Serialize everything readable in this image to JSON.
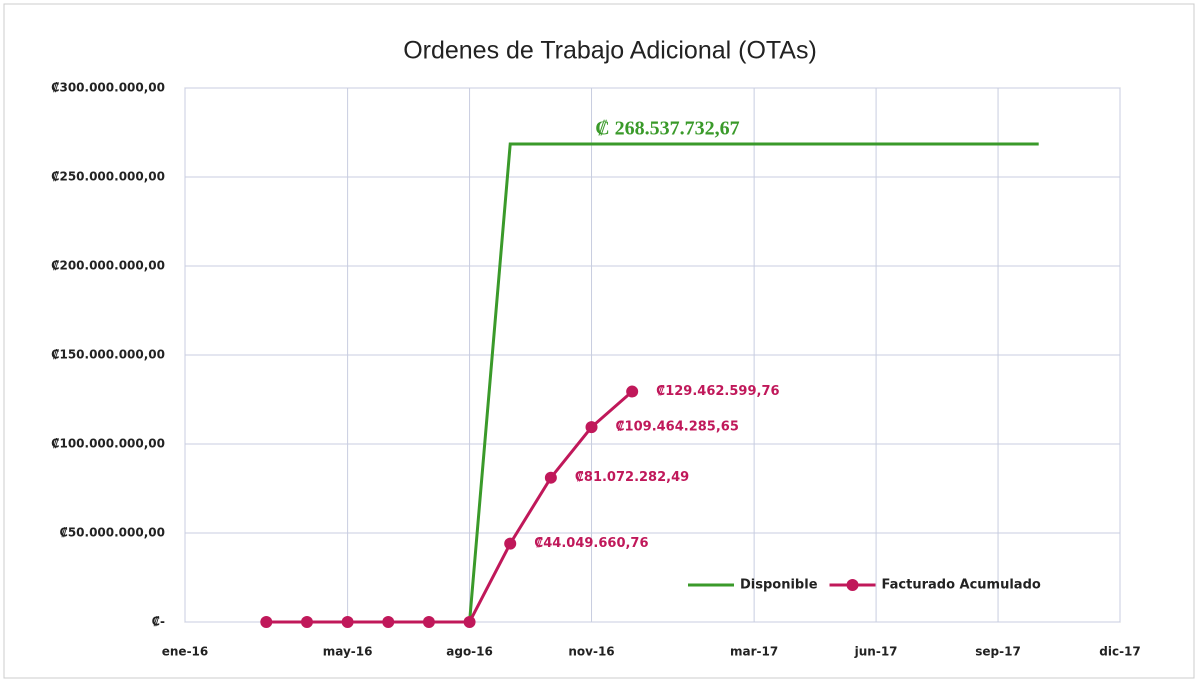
{
  "chart_data": {
    "type": "line",
    "title": "Ordenes de Trabajo Adicional (OTAs)",
    "xlim": [
      "2016-01",
      "2017-12"
    ],
    "xticks": [
      {
        "value": "2016-01",
        "label": "ene-16"
      },
      {
        "value": "2016-05",
        "label": "may-16"
      },
      {
        "value": "2016-08",
        "label": "ago-16"
      },
      {
        "value": "2016-11",
        "label": "nov-16"
      },
      {
        "value": "2017-03",
        "label": "mar-17"
      },
      {
        "value": "2017-06",
        "label": "jun-17"
      },
      {
        "value": "2017-09",
        "label": "sep-17"
      },
      {
        "value": "2017-12",
        "label": "dic-17"
      }
    ],
    "ylim": [
      0,
      300000000
    ],
    "yticks": [
      {
        "value": 0,
        "label": "₡-"
      },
      {
        "value": 50000000,
        "label": "₡50.000.000,00"
      },
      {
        "value": 100000000,
        "label": "₡100.000.000,00"
      },
      {
        "value": 150000000,
        "label": "₡150.000.000,00"
      },
      {
        "value": 200000000,
        "label": "₡200.000.000,00"
      },
      {
        "value": 250000000,
        "label": "₡250.000.000,00"
      },
      {
        "value": 300000000,
        "label": "₡300.000.000,00"
      }
    ],
    "grid": true,
    "legend": "lower right",
    "series": [
      {
        "name": "Disponible",
        "color": "#3a9a2a",
        "markers": false,
        "x": [
          "2016-08",
          "2016-09",
          "2017-10"
        ],
        "values": [
          0,
          268537732.67,
          268537732.67
        ],
        "value_labels": [
          null,
          "₡ 268.537.732,67",
          null
        ]
      },
      {
        "name": "Facturado Acumulado",
        "color": "#c0185a",
        "markers": true,
        "x": [
          "2016-03",
          "2016-04",
          "2016-05",
          "2016-06",
          "2016-07",
          "2016-08",
          "2016-09",
          "2016-10",
          "2016-11",
          "2016-12"
        ],
        "values": [
          0,
          0,
          0,
          0,
          0,
          0,
          44049660.76,
          81072282.49,
          109464285.65,
          129462599.76
        ],
        "value_labels": [
          null,
          null,
          null,
          null,
          null,
          null,
          "₡44.049.660,76",
          "₡81.072.282,49",
          "₡109.464.285,65",
          "₡129.462.599,76"
        ]
      }
    ]
  }
}
